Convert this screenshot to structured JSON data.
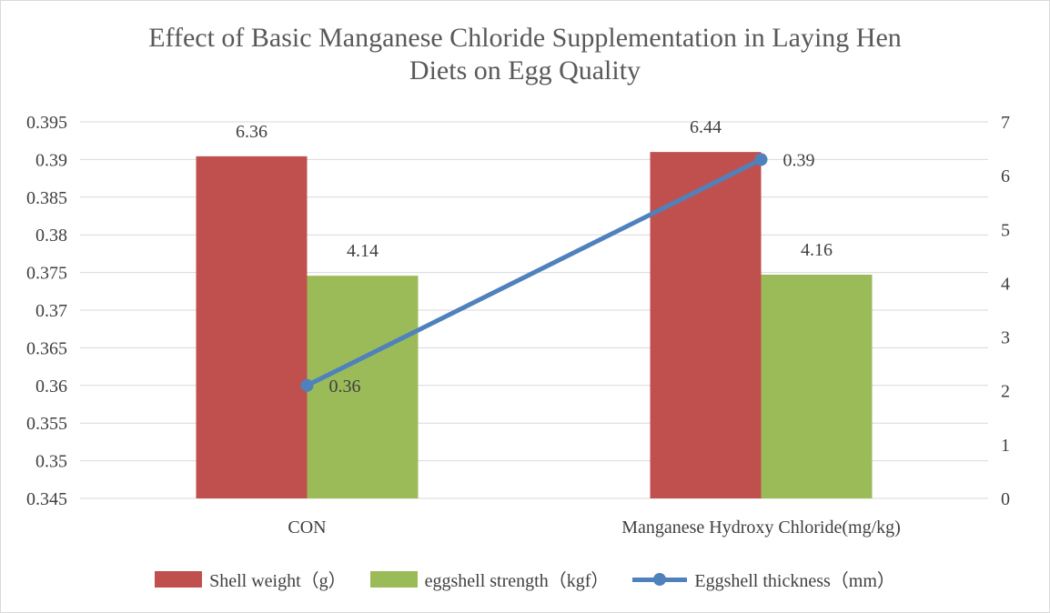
{
  "chart_data": {
    "type": "bar",
    "title_line1": "Effect of Basic Manganese Chloride Supplementation in Laying Hen",
    "title_line2": "Diets on Egg Quality",
    "categories": [
      "CON",
      "Manganese Hydroxy Chloride(mg/kg)"
    ],
    "series": [
      {
        "name": "Shell weight（g）",
        "type": "bar",
        "axis": "right",
        "color": "#C0504D",
        "values": [
          6.36,
          6.44
        ],
        "labels": [
          "6.36",
          "6.44"
        ]
      },
      {
        "name": "eggshell strength（kgf）",
        "type": "bar",
        "axis": "right",
        "color": "#9BBB59",
        "values": [
          4.14,
          4.16
        ],
        "labels": [
          "4.14",
          "4.16"
        ]
      },
      {
        "name": "Eggshell thickness（mm）",
        "type": "line",
        "axis": "left",
        "color": "#4F81BD",
        "values": [
          0.36,
          0.39
        ],
        "labels": [
          "0.36",
          "0.39"
        ]
      }
    ],
    "y_left": {
      "min": 0.345,
      "max": 0.395,
      "ticks": [
        "0.395",
        "0.39",
        "0.385",
        "0.38",
        "0.375",
        "0.37",
        "0.365",
        "0.36",
        "0.355",
        "0.35",
        "0.345"
      ]
    },
    "y_right": {
      "min": 0,
      "max": 7,
      "ticks": [
        "7",
        "6",
        "5",
        "4",
        "3",
        "2",
        "1",
        "0"
      ]
    },
    "grid": true,
    "legend_position": "bottom"
  }
}
